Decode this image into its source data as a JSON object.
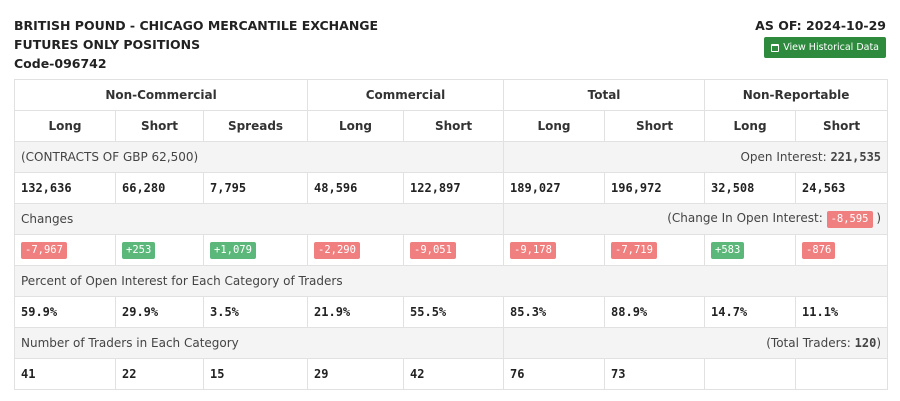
{
  "header": {
    "title_line1": "BRITISH POUND - CHICAGO MERCANTILE EXCHANGE",
    "title_line2": "FUTURES ONLY POSITIONS",
    "code": "Code-096742",
    "as_of": "AS OF: 2024-10-29",
    "historical_button": "View Historical Data"
  },
  "table": {
    "groups": [
      "Non-Commercial",
      "Commercial",
      "Total",
      "Non-Reportable"
    ],
    "subheaders": [
      "Long",
      "Short",
      "Spreads",
      "Long",
      "Short",
      "Long",
      "Short",
      "Long",
      "Short"
    ],
    "contracts_label": "(CONTRACTS OF GBP 62,500)",
    "open_interest_label": "Open Interest:",
    "open_interest_value": "221,535",
    "positions": [
      "132,636",
      "66,280",
      "7,795",
      "48,596",
      "122,897",
      "189,027",
      "196,972",
      "32,508",
      "24,563"
    ],
    "changes_label": "Changes",
    "change_oi_label": "(Change In Open Interest:",
    "change_oi_value": "-8,595",
    "change_oi_close": ")",
    "changes": [
      "-7,967",
      "+253",
      "+1,079",
      "-2,290",
      "-9,051",
      "-9,178",
      "-7,719",
      "+583",
      "-876"
    ],
    "percent_label": "Percent of Open Interest for Each Category of Traders",
    "percents": [
      "59.9%",
      "29.9%",
      "3.5%",
      "21.9%",
      "55.5%",
      "85.3%",
      "88.9%",
      "14.7%",
      "11.1%"
    ],
    "traders_label": "Number of Traders in Each Category",
    "total_traders_label": "(Total Traders:",
    "total_traders_value": "120",
    "total_traders_close": ")",
    "traders": [
      "41",
      "22",
      "15",
      "29",
      "42",
      "76",
      "73",
      "",
      ""
    ]
  },
  "colors": {
    "positive": "#5cb87a",
    "negative": "#f08080",
    "button": "#2e8b3e"
  }
}
